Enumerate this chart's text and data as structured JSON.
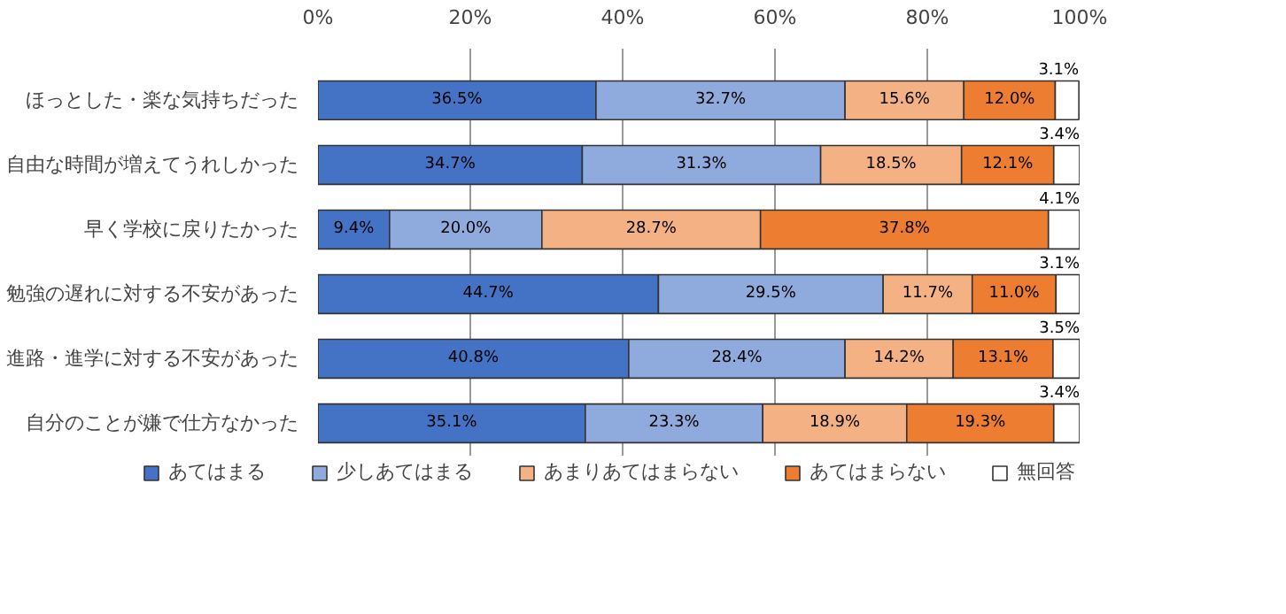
{
  "chart_data": {
    "type": "bar",
    "orientation": "horizontal",
    "stacked": true,
    "categories": [
      "ほっとした・楽な気持ちだった",
      "自由な時間が増えてうれしかった",
      "早く学校に戻りたかった",
      "勉強の遅れに対する不安があった",
      "進路・進学に対する不安があった",
      "自分のことが嫌で仕方なかった"
    ],
    "series": [
      {
        "name": "あてはまる",
        "color": "#4472c4",
        "values": [
          36.5,
          34.7,
          9.4,
          44.7,
          40.8,
          35.1
        ],
        "value_labels": [
          "36.5%",
          "34.7%",
          "9.4%",
          "44.7%",
          "40.8%",
          "35.1%"
        ]
      },
      {
        "name": "少しあてはまる",
        "color": "#8faadc",
        "values": [
          32.7,
          31.3,
          20.0,
          29.5,
          28.4,
          23.3
        ],
        "value_labels": [
          "32.7%",
          "31.3%",
          "20.0%",
          "29.5%",
          "28.4%",
          "23.3%"
        ]
      },
      {
        "name": "あまりあてはまらない",
        "color": "#f4b183",
        "values": [
          15.6,
          18.5,
          28.7,
          11.7,
          14.2,
          18.9
        ],
        "value_labels": [
          "15.6%",
          "18.5%",
          "28.7%",
          "11.7%",
          "14.2%",
          "18.9%"
        ]
      },
      {
        "name": "あてはまらない",
        "color": "#ed7d31",
        "values": [
          12.0,
          12.1,
          37.8,
          11.0,
          13.1,
          19.3
        ],
        "value_labels": [
          "12.0%",
          "12.1%",
          "37.8%",
          "11.0%",
          "13.1%",
          "19.3%"
        ]
      },
      {
        "name": "無回答",
        "color": "#ffffff",
        "values": [
          3.1,
          3.4,
          4.1,
          3.1,
          3.5,
          3.4
        ],
        "value_labels": [
          "3.1%",
          "3.4%",
          "4.1%",
          "3.1%",
          "3.5%",
          "3.4%"
        ]
      }
    ],
    "xlim": [
      0,
      100
    ],
    "xticks": [
      {
        "value": 0,
        "label": "0%"
      },
      {
        "value": 20,
        "label": "20%"
      },
      {
        "value": 40,
        "label": "40%"
      },
      {
        "value": 60,
        "label": "60%"
      },
      {
        "value": 80,
        "label": "80%"
      },
      {
        "value": 100,
        "label": "100%"
      }
    ],
    "grid": "x",
    "legend": "bottom"
  }
}
